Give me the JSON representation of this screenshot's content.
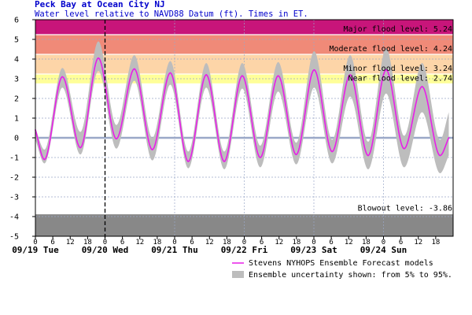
{
  "chart_data": {
    "type": "line",
    "title": "Peck Bay at Ocean City NJ",
    "subtitle": "Water level relative to NAVD88 Datum (ft). Times in ET.",
    "xlabel": "",
    "ylabel": "",
    "ylim": [
      -5,
      6
    ],
    "y_ticks": [
      "6",
      "5",
      "4",
      "3",
      "2",
      "1",
      "0",
      "-1",
      "-2",
      "-3",
      "-4",
      "-5"
    ],
    "x_range_hours": [
      0,
      144
    ],
    "x_day_labels": [
      "09/19 Tue",
      "09/20 Wed",
      "09/21 Thu",
      "09/22 Fri",
      "09/23 Sat",
      "09/24 Sun"
    ],
    "x_hour_labels": [
      "0",
      "6",
      "12",
      "18"
    ],
    "now_marker_hour": 24,
    "thresholds": [
      {
        "label": "Major flood level: 5.24",
        "value": 5.24,
        "color": "#c8157a"
      },
      {
        "label": "Moderate flood level: 4.24",
        "value": 4.24,
        "color": "#f08a78"
      },
      {
        "label": "Minor flood level: 3.24",
        "value": 3.24,
        "color": "#fdd5a8"
      },
      {
        "label": "Near flood level: 2.74",
        "value": 2.74,
        "color": "#ffff99"
      },
      {
        "label": "Blowout level: -3.86",
        "value": -3.86,
        "color": "#888888"
      }
    ],
    "legend": [
      {
        "label": "Stevens NYHOPS Ensemble Forecast models",
        "color": "#e81ee8"
      },
      {
        "label": "Ensemble uncertainty shown: from 5% to 95%.",
        "color": "#bdbdbd"
      }
    ],
    "series": [
      {
        "type": "forecast",
        "color": "#e81ee8",
        "points": [
          [
            0,
            0.4
          ],
          [
            3.1,
            -1.1
          ],
          [
            9.3,
            3.1
          ],
          [
            15.5,
            -0.5
          ],
          [
            21.7,
            4.05
          ],
          [
            27.9,
            -0.05
          ],
          [
            34.1,
            3.5
          ],
          [
            40.3,
            -0.6
          ],
          [
            46.5,
            3.3
          ],
          [
            52.7,
            -1.2
          ],
          [
            58.9,
            3.2
          ],
          [
            65.1,
            -1.2
          ],
          [
            71.3,
            3.15
          ],
          [
            77.5,
            -1.0
          ],
          [
            83.7,
            3.15
          ],
          [
            89.9,
            -0.85
          ],
          [
            96.1,
            3.45
          ],
          [
            102.3,
            -0.7
          ],
          [
            108.5,
            3.2
          ],
          [
            114.7,
            -0.9
          ],
          [
            120.9,
            3.45
          ],
          [
            127.1,
            -0.55
          ],
          [
            133.3,
            2.6
          ],
          [
            139.5,
            -0.9
          ],
          [
            142.5,
            0.0
          ]
        ],
        "band_lower": [
          [
            0,
            -0.1
          ],
          [
            3.1,
            -1.3
          ],
          [
            9.3,
            2.55
          ],
          [
            15.5,
            -0.85
          ],
          [
            21.7,
            3.4
          ],
          [
            27.9,
            -0.55
          ],
          [
            34.1,
            2.9
          ],
          [
            40.3,
            -1.15
          ],
          [
            46.5,
            2.7
          ],
          [
            52.7,
            -1.55
          ],
          [
            58.9,
            2.55
          ],
          [
            65.1,
            -1.6
          ],
          [
            71.3,
            2.5
          ],
          [
            77.5,
            -1.5
          ],
          [
            83.7,
            2.35
          ],
          [
            89.9,
            -1.35
          ],
          [
            96.1,
            2.55
          ],
          [
            102.3,
            -1.3
          ],
          [
            108.5,
            2.1
          ],
          [
            114.7,
            -1.6
          ],
          [
            120.9,
            2.25
          ],
          [
            127.1,
            -1.5
          ],
          [
            133.3,
            1.3
          ],
          [
            139.5,
            -1.8
          ],
          [
            142.5,
            -0.9
          ]
        ],
        "band_upper": [
          [
            0,
            0.5
          ],
          [
            3.1,
            -0.6
          ],
          [
            9.3,
            3.55
          ],
          [
            15.5,
            0.3
          ],
          [
            21.7,
            4.9
          ],
          [
            27.9,
            0.65
          ],
          [
            34.1,
            4.2
          ],
          [
            40.3,
            0.0
          ],
          [
            46.5,
            3.9
          ],
          [
            52.7,
            -0.7
          ],
          [
            58.9,
            3.8
          ],
          [
            65.1,
            -0.7
          ],
          [
            71.3,
            3.8
          ],
          [
            77.5,
            -0.4
          ],
          [
            83.7,
            3.85
          ],
          [
            89.9,
            -0.25
          ],
          [
            96.1,
            4.4
          ],
          [
            102.3,
            -0.1
          ],
          [
            108.5,
            4.2
          ],
          [
            114.7,
            -0.2
          ],
          [
            120.9,
            4.55
          ],
          [
            127.1,
            0.1
          ],
          [
            133.3,
            3.8
          ],
          [
            139.5,
            -0.1
          ],
          [
            142.5,
            1.3
          ]
        ]
      }
    ]
  }
}
